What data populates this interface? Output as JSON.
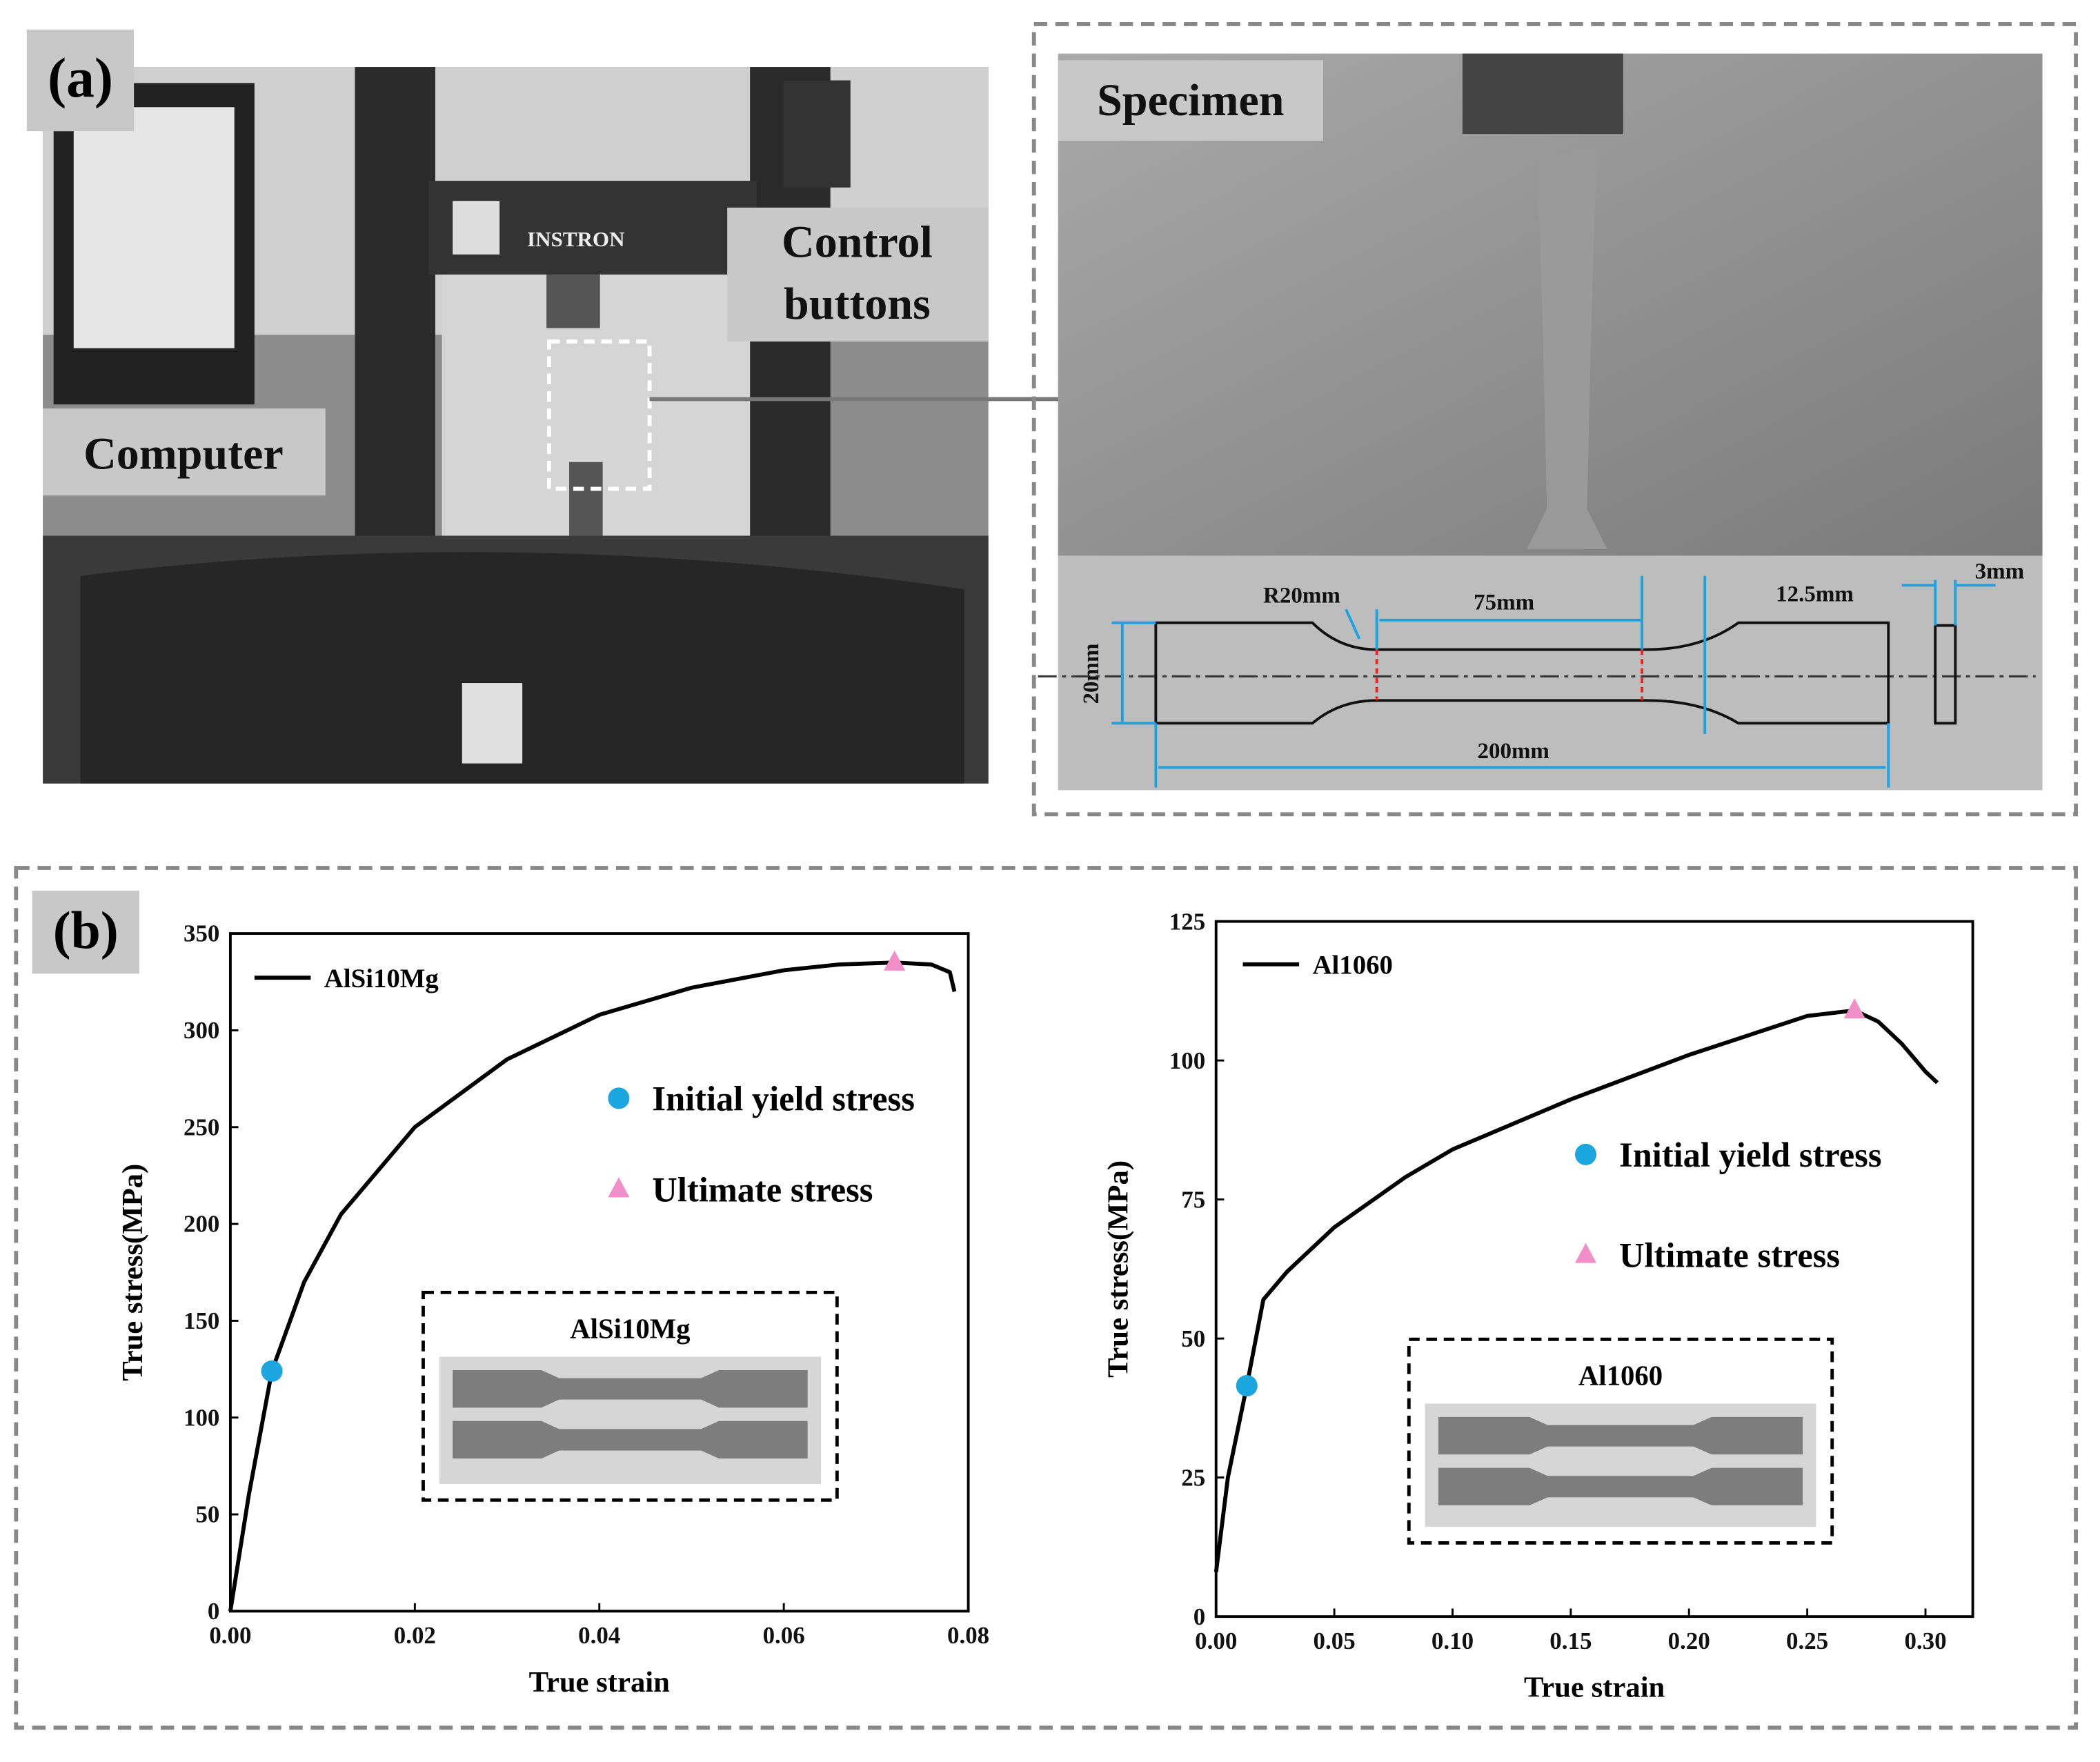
{
  "panel_a": {
    "label": "(a)",
    "computer": "Computer",
    "control_buttons": [
      "Control",
      "buttons"
    ],
    "machine_brand": "INSTRON",
    "specimen": "Specimen",
    "dimensions": {
      "radius": "R20mm",
      "gauge_length": "75mm",
      "grip_width": "12.5mm",
      "thickness": "3mm",
      "width": "20mm",
      "total_length": "200mm"
    }
  },
  "panel_b": {
    "label": "(b)"
  },
  "chart_data": [
    {
      "type": "line",
      "x_label": "True strain",
      "y_label": "True stress(MPa)",
      "inset_title": "AlSi10Mg",
      "x": [
        0,
        0.002,
        0.0045,
        0.008,
        0.012,
        0.02,
        0.03,
        0.04,
        0.05,
        0.06,
        0.066,
        0.072,
        0.076,
        0.078,
        0.0785
      ],
      "series": [
        {
          "name": "AlSi10Mg",
          "color": "#000000",
          "values": [
            0,
            60,
            124,
            170,
            205,
            250,
            285,
            308,
            322,
            331,
            334,
            335,
            334,
            330,
            320
          ]
        },
        {
          "name": "Initial yield stress",
          "color": "#1ba6e0",
          "marker": "circle",
          "x": [
            0.0045
          ],
          "values": [
            124
          ]
        },
        {
          "name": "Ultimate stress",
          "color": "#f28fc8",
          "marker": "triangle",
          "x": [
            0.072
          ],
          "values": [
            335
          ]
        }
      ],
      "xlim": [
        0,
        0.08
      ],
      "ylim": [
        0,
        350
      ],
      "xticks": [
        {
          "value": 0,
          "label": "0.00"
        },
        {
          "value": 0.02,
          "label": "0.02"
        },
        {
          "value": 0.04,
          "label": "0.04"
        },
        {
          "value": 0.06,
          "label": "0.06"
        },
        {
          "value": 0.08,
          "label": "0.08"
        }
      ],
      "yticks": [
        0,
        50,
        100,
        150,
        200,
        250,
        300,
        350
      ]
    },
    {
      "type": "line",
      "x_label": "True strain",
      "y_label": "True stress(MPa)",
      "inset_title": "Al1060",
      "x": [
        0,
        0.005,
        0.013,
        0.02,
        0.03,
        0.05,
        0.08,
        0.1,
        0.15,
        0.2,
        0.25,
        0.27,
        0.28,
        0.29,
        0.3,
        0.305
      ],
      "series": [
        {
          "name": "Al1060",
          "color": "#000000",
          "values": [
            8,
            25,
            41.5,
            57,
            62,
            70,
            79,
            84,
            93,
            101,
            108,
            109,
            107,
            103,
            98,
            96
          ]
        },
        {
          "name": "Initial yield stress",
          "color": "#1ba6e0",
          "marker": "circle",
          "x": [
            0.013
          ],
          "values": [
            41.5
          ]
        },
        {
          "name": "Ultimate stress",
          "color": "#f28fc8",
          "marker": "triangle",
          "x": [
            0.27
          ],
          "values": [
            109
          ]
        }
      ],
      "xlim": [
        0,
        0.32
      ],
      "ylim": [
        0,
        125
      ],
      "xticks": [
        {
          "value": 0,
          "label": "0.00"
        },
        {
          "value": 0.05,
          "label": "0.05"
        },
        {
          "value": 0.1,
          "label": "0.10"
        },
        {
          "value": 0.15,
          "label": "0.15"
        },
        {
          "value": 0.2,
          "label": "0.20"
        },
        {
          "value": 0.25,
          "label": "0.25"
        },
        {
          "value": 0.3,
          "label": "0.30"
        }
      ],
      "yticks": [
        0,
        25,
        50,
        75,
        100,
        125
      ]
    }
  ]
}
